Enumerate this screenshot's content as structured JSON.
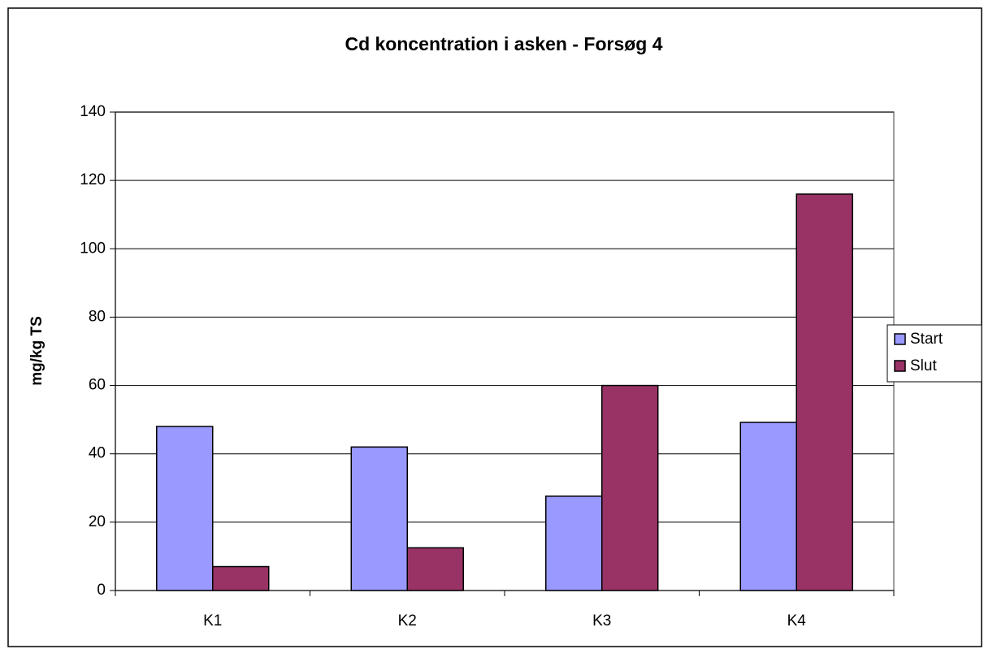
{
  "chart_data": {
    "type": "bar",
    "title": "Cd koncentration i asken - Forsøg 4",
    "y_label": "mg/kg TS",
    "categories": [
      "K1",
      "K2",
      "K3",
      "K4"
    ],
    "series": [
      {
        "name": "Start",
        "color": "#9999ff",
        "values": [
          48,
          42,
          27.6,
          49.2
        ]
      },
      {
        "name": "Slut",
        "color": "#993366",
        "values": [
          7,
          12.5,
          60,
          116
        ]
      }
    ],
    "ylim": [
      0,
      140
    ],
    "yticks": [
      0,
      20,
      40,
      60,
      80,
      100,
      120,
      140
    ],
    "grid": true,
    "legend": "right"
  }
}
